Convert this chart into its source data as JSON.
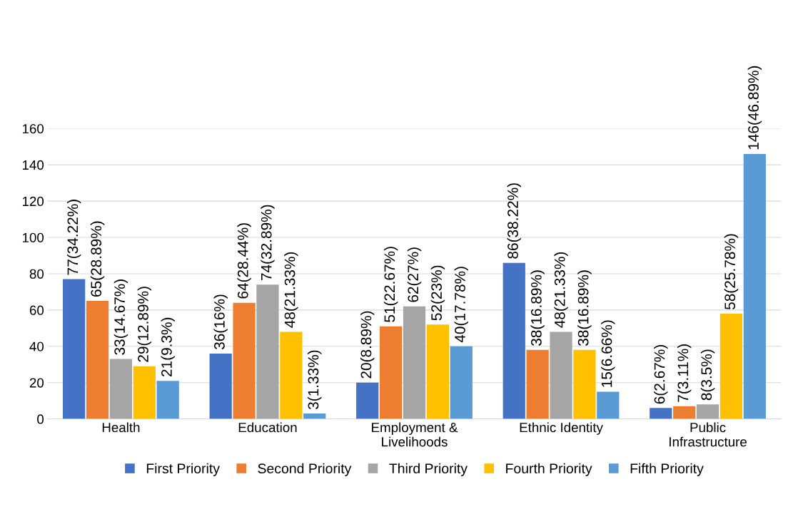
{
  "chart_data": {
    "type": "bar",
    "categories": [
      "Health",
      "Education",
      "Employment &\nLivelihoods",
      "Ethnic Identity",
      "Public\nInfrastructure"
    ],
    "series": [
      {
        "name": "First Priority",
        "color": "#4472c4",
        "values": [
          77,
          36,
          20,
          86,
          6
        ],
        "value_labels": [
          "77(34.22%)",
          "36(16%)",
          "20(8.89%)",
          "86(38.22%)",
          "6(2.67%)"
        ]
      },
      {
        "name": "Second Priority",
        "color": "#ed7d31",
        "values": [
          65,
          64,
          51,
          38,
          7
        ],
        "value_labels": [
          "65(28.89%)",
          "64(28.44%)",
          "51(22.67%)",
          "38(16.89%)",
          "7(3.11%)"
        ]
      },
      {
        "name": "Third Priority",
        "color": "#a5a5a5",
        "values": [
          33,
          74,
          62,
          48,
          8
        ],
        "value_labels": [
          "33(14.67%)",
          "74(32.89%)",
          "62(27%)",
          "48(21.33%)",
          "8(3.5%)"
        ]
      },
      {
        "name": "Fourth Priority",
        "color": "#ffc000",
        "values": [
          29,
          48,
          52,
          38,
          58
        ],
        "value_labels": [
          "29(12.89%)",
          "48(21.33%)",
          "52(23%)",
          "38(16.89%)",
          "58(25.78%)"
        ]
      },
      {
        "name": "Fifth Priority",
        "color": "#5b9bd5",
        "values": [
          21,
          3,
          40,
          15,
          146
        ],
        "value_labels": [
          "21(9.3%)",
          "3(1.33%)",
          "40(17.78%)",
          "15(6.66%)",
          "146(46.89%)"
        ]
      }
    ],
    "ylim": [
      0,
      160
    ],
    "yticks": [
      0,
      20,
      40,
      60,
      80,
      100,
      120,
      140,
      160
    ],
    "grid": "y",
    "legend": "bottom"
  }
}
